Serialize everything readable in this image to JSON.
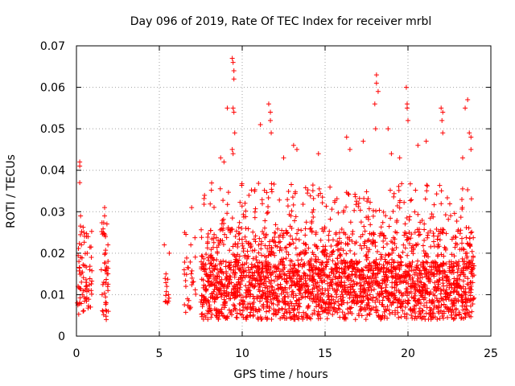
{
  "chart_data": {
    "type": "scatter",
    "title": "Day 096 of 2019, Rate Of TEC Index for receiver mrbl",
    "xlabel": "GPS time / hours",
    "ylabel": "ROTI / TECUs",
    "xlim": [
      0,
      25
    ],
    "ylim": [
      0,
      0.07
    ],
    "xticks": [
      0,
      5,
      10,
      15,
      20,
      25
    ],
    "xtick_labels": [
      "0",
      "5",
      "10",
      "15",
      "20",
      "25"
    ],
    "yticks": [
      0,
      0.01,
      0.02,
      0.03,
      0.04,
      0.05,
      0.06,
      0.07
    ],
    "ytick_labels": [
      "0",
      "0.01",
      "0.02",
      "0.03",
      "0.04",
      "0.05",
      "0.06",
      "0.07"
    ],
    "grid": true,
    "marker": "+",
    "color": "#ff0000",
    "series": [
      {
        "name": "ROTI",
        "points": [
          [
            0.05,
            0.008
          ],
          [
            0.1,
            0.012
          ],
          [
            0.15,
            0.018
          ],
          [
            0.2,
            0.041
          ],
          [
            0.2,
            0.042
          ],
          [
            0.2,
            0.037
          ],
          [
            0.25,
            0.029
          ],
          [
            0.3,
            0.022
          ],
          [
            0.3,
            0.015
          ],
          [
            0.35,
            0.01
          ],
          [
            0.4,
            0.006
          ],
          [
            0.45,
            0.025
          ],
          [
            0.5,
            0.017
          ],
          [
            0.55,
            0.009
          ],
          [
            0.6,
            0.013
          ],
          [
            0.65,
            0.02
          ],
          [
            0.7,
            0.024
          ],
          [
            0.75,
            0.011
          ],
          [
            0.8,
            0.016
          ],
          [
            0.85,
            0.007
          ],
          [
            0.9,
            0.019
          ],
          [
            1.5,
            0.016
          ],
          [
            1.55,
            0.01
          ],
          [
            1.6,
            0.006
          ],
          [
            1.65,
            0.013
          ],
          [
            1.7,
            0.031
          ],
          [
            1.7,
            0.029
          ],
          [
            1.75,
            0.024
          ],
          [
            1.75,
            0.02
          ],
          [
            1.8,
            0.004
          ],
          [
            1.8,
            0.008
          ],
          [
            1.85,
            0.015
          ],
          [
            1.9,
            0.022
          ],
          [
            1.9,
            0.011
          ],
          [
            5.3,
            0.022
          ],
          [
            5.4,
            0.015
          ],
          [
            5.45,
            0.012
          ],
          [
            5.5,
            0.008
          ],
          [
            5.55,
            0.01
          ],
          [
            5.6,
            0.02
          ],
          [
            6.5,
            0.016
          ],
          [
            6.6,
            0.012
          ],
          [
            6.7,
            0.009
          ],
          [
            6.8,
            0.007
          ],
          [
            6.9,
            0.022
          ],
          [
            6.95,
            0.031
          ],
          [
            7.0,
            0.013
          ],
          [
            9.4,
            0.067
          ],
          [
            9.45,
            0.066
          ],
          [
            9.5,
            0.064
          ],
          [
            9.5,
            0.062
          ],
          [
            9.45,
            0.055
          ],
          [
            9.5,
            0.054
          ],
          [
            9.55,
            0.049
          ],
          [
            9.4,
            0.045
          ],
          [
            9.45,
            0.044
          ],
          [
            9.1,
            0.055
          ],
          [
            11.6,
            0.056
          ],
          [
            11.7,
            0.054
          ],
          [
            11.7,
            0.052
          ],
          [
            11.75,
            0.049
          ],
          [
            11.1,
            0.051
          ],
          [
            18.1,
            0.063
          ],
          [
            18.1,
            0.061
          ],
          [
            18.2,
            0.059
          ],
          [
            18.0,
            0.056
          ],
          [
            18.05,
            0.05
          ],
          [
            19.9,
            0.06
          ],
          [
            19.95,
            0.056
          ],
          [
            19.95,
            0.055
          ],
          [
            20.0,
            0.052
          ],
          [
            18.8,
            0.05
          ],
          [
            22.0,
            0.055
          ],
          [
            22.1,
            0.054
          ],
          [
            22.05,
            0.052
          ],
          [
            23.6,
            0.057
          ],
          [
            23.45,
            0.055
          ],
          [
            23.7,
            0.049
          ],
          [
            23.8,
            0.048
          ],
          [
            23.8,
            0.045
          ],
          [
            22.1,
            0.049
          ],
          [
            20.6,
            0.046
          ],
          [
            21.1,
            0.047
          ],
          [
            16.3,
            0.048
          ],
          [
            16.5,
            0.045
          ],
          [
            13.1,
            0.046
          ],
          [
            13.3,
            0.045
          ],
          [
            14.6,
            0.044
          ],
          [
            12.5,
            0.043
          ],
          [
            17.3,
            0.047
          ],
          [
            8.7,
            0.043
          ],
          [
            8.9,
            0.042
          ],
          [
            19.0,
            0.044
          ],
          [
            19.5,
            0.043
          ],
          [
            23.3,
            0.043
          ]
        ]
      }
    ]
  }
}
